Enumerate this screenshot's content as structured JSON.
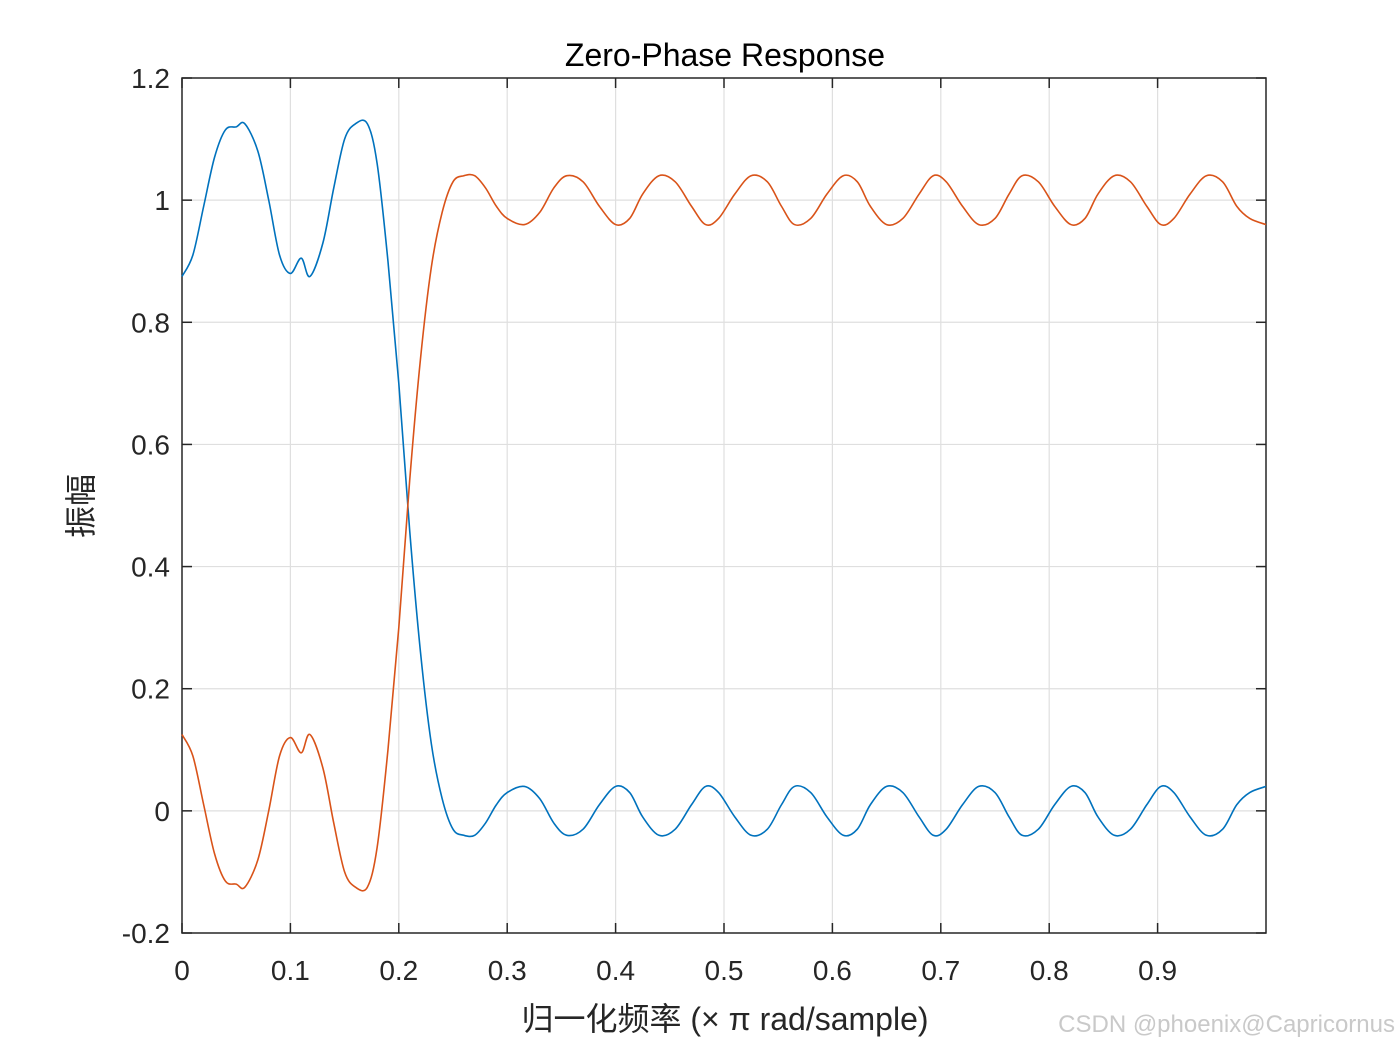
{
  "chart_data": {
    "type": "line",
    "title": "Zero-Phase Response",
    "xlabel": "归一化频率 (× π rad/sample)",
    "ylabel": "振幅",
    "xlim": [
      0,
      1
    ],
    "ylim": [
      -0.2,
      1.2
    ],
    "x_ticks": [
      0,
      0.1,
      0.2,
      0.3,
      0.4,
      0.5,
      0.6,
      0.7,
      0.8,
      0.9
    ],
    "x_tick_labels": [
      "0",
      "0.1",
      "0.2",
      "0.3",
      "0.4",
      "0.5",
      "0.6",
      "0.7",
      "0.8",
      "0.9"
    ],
    "y_ticks": [
      -0.2,
      0,
      0.2,
      0.4,
      0.6,
      0.8,
      1,
      1.2
    ],
    "y_tick_labels": [
      "-0.2",
      "0",
      "0.2",
      "0.4",
      "0.6",
      "0.8",
      "1",
      "1.2"
    ],
    "grid": true,
    "series": [
      {
        "color": "#0072BD",
        "x": [
          0,
          0.01,
          0.02,
          0.03,
          0.04,
          0.05,
          0.058,
          0.07,
          0.08,
          0.09,
          0.1,
          0.11,
          0.118,
          0.13,
          0.14,
          0.15,
          0.16,
          0.171,
          0.18,
          0.19,
          0.2,
          0.21,
          0.22,
          0.23,
          0.24,
          0.25,
          0.26,
          0.27,
          0.28,
          0.29,
          0.3,
          0.316,
          0.33,
          0.343,
          0.355,
          0.37,
          0.385,
          0.4,
          0.413,
          0.425,
          0.44,
          0.455,
          0.47,
          0.483,
          0.495,
          0.51,
          0.525,
          0.54,
          0.553,
          0.565,
          0.58,
          0.595,
          0.61,
          0.623,
          0.635,
          0.65,
          0.665,
          0.68,
          0.693,
          0.705,
          0.72,
          0.735,
          0.75,
          0.763,
          0.775,
          0.79,
          0.805,
          0.82,
          0.833,
          0.845,
          0.86,
          0.875,
          0.89,
          0.903,
          0.915,
          0.93,
          0.945,
          0.96,
          0.973,
          0.985,
          1.0
        ],
        "y": [
          0.875,
          0.91,
          0.99,
          1.07,
          1.115,
          1.12,
          1.125,
          1.08,
          1.0,
          0.91,
          0.88,
          0.905,
          0.875,
          0.93,
          1.02,
          1.1,
          1.125,
          1.125,
          1.06,
          0.9,
          0.7,
          0.46,
          0.26,
          0.11,
          0.02,
          -0.03,
          -0.04,
          -0.04,
          -0.02,
          0.01,
          0.03,
          0.04,
          0.02,
          -0.02,
          -0.04,
          -0.03,
          0.01,
          0.04,
          0.03,
          -0.01,
          -0.04,
          -0.03,
          0.01,
          0.04,
          0.03,
          -0.01,
          -0.04,
          -0.03,
          0.01,
          0.04,
          0.03,
          -0.01,
          -0.04,
          -0.03,
          0.01,
          0.04,
          0.03,
          -0.01,
          -0.04,
          -0.03,
          0.01,
          0.04,
          0.03,
          -0.01,
          -0.04,
          -0.03,
          0.01,
          0.04,
          0.03,
          -0.01,
          -0.04,
          -0.03,
          0.01,
          0.04,
          0.03,
          -0.01,
          -0.04,
          -0.03,
          0.01,
          0.03,
          0.04
        ]
      },
      {
        "color": "#D95319",
        "x": [
          0,
          0.01,
          0.02,
          0.03,
          0.04,
          0.05,
          0.058,
          0.07,
          0.08,
          0.09,
          0.1,
          0.11,
          0.118,
          0.13,
          0.14,
          0.15,
          0.16,
          0.171,
          0.18,
          0.19,
          0.2,
          0.21,
          0.22,
          0.23,
          0.24,
          0.25,
          0.26,
          0.27,
          0.28,
          0.29,
          0.3,
          0.316,
          0.33,
          0.343,
          0.355,
          0.37,
          0.385,
          0.4,
          0.413,
          0.425,
          0.44,
          0.455,
          0.47,
          0.483,
          0.495,
          0.51,
          0.525,
          0.54,
          0.553,
          0.565,
          0.58,
          0.595,
          0.61,
          0.623,
          0.635,
          0.65,
          0.665,
          0.68,
          0.693,
          0.705,
          0.72,
          0.735,
          0.75,
          0.763,
          0.775,
          0.79,
          0.805,
          0.82,
          0.833,
          0.845,
          0.86,
          0.875,
          0.89,
          0.903,
          0.915,
          0.93,
          0.945,
          0.96,
          0.973,
          0.985,
          1.0
        ],
        "y": [
          0.125,
          0.09,
          0.01,
          -0.07,
          -0.115,
          -0.12,
          -0.125,
          -0.08,
          0.0,
          0.09,
          0.12,
          0.095,
          0.125,
          0.07,
          -0.02,
          -0.1,
          -0.125,
          -0.125,
          -0.06,
          0.1,
          0.3,
          0.54,
          0.74,
          0.89,
          0.98,
          1.03,
          1.04,
          1.04,
          1.02,
          0.99,
          0.97,
          0.96,
          0.98,
          1.02,
          1.04,
          1.03,
          0.99,
          0.96,
          0.97,
          1.01,
          1.04,
          1.03,
          0.99,
          0.96,
          0.97,
          1.01,
          1.04,
          1.03,
          0.99,
          0.96,
          0.97,
          1.01,
          1.04,
          1.03,
          0.99,
          0.96,
          0.97,
          1.01,
          1.04,
          1.03,
          0.99,
          0.96,
          0.97,
          1.01,
          1.04,
          1.03,
          0.99,
          0.96,
          0.97,
          1.01,
          1.04,
          1.03,
          0.99,
          0.96,
          0.97,
          1.01,
          1.04,
          1.03,
          0.99,
          0.97,
          0.96
        ]
      }
    ]
  },
  "watermark": "CSDN @phoenix@Capricornus",
  "colors": {
    "grid": "#dfdfdf",
    "axis": "#262626"
  }
}
